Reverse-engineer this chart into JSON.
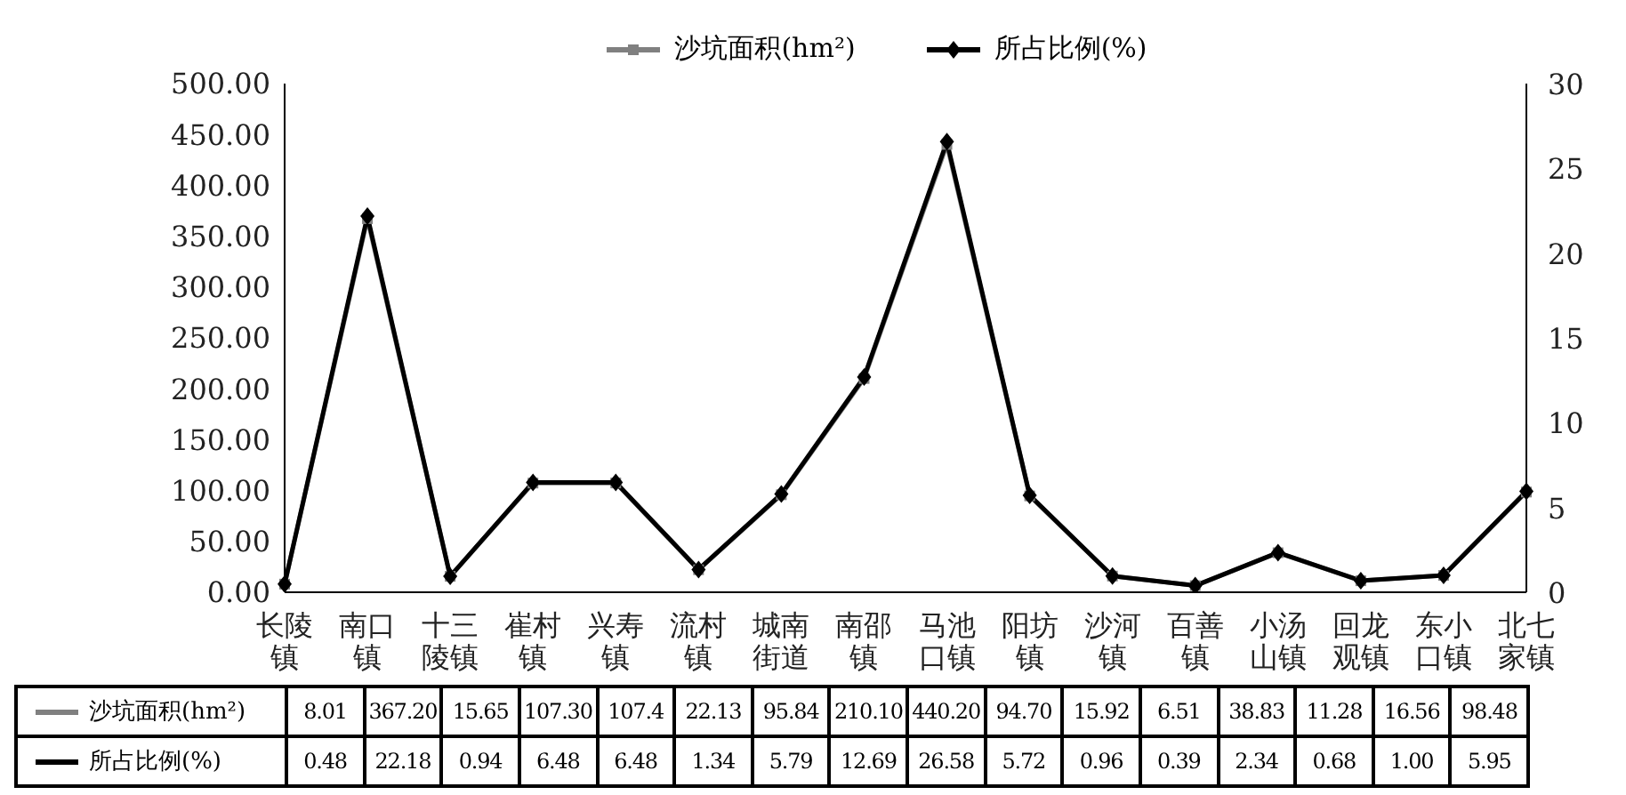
{
  "chart_data": {
    "type": "line",
    "categories": [
      "长陵镇",
      "南口镇",
      "十三陵镇",
      "崔村镇",
      "兴寿镇",
      "流村镇",
      "城南街道",
      "南邵镇",
      "马池口镇",
      "阳坊镇",
      "沙河镇",
      "百善镇",
      "小汤山镇",
      "回龙观镇",
      "东小口镇",
      "北七家镇"
    ],
    "series": [
      {
        "name": "沙坑面积(hm²)",
        "color": "#808080",
        "marker": "square",
        "values": [
          8.01,
          367.2,
          15.65,
          107.3,
          107.4,
          22.13,
          95.84,
          210.1,
          440.2,
          94.7,
          15.92,
          6.51,
          38.83,
          11.28,
          16.56,
          98.48
        ],
        "value_labels": [
          "8.01",
          "367.20",
          "15.65",
          "107.30",
          "107.4",
          "22.13",
          "95.84",
          "210.10",
          "440.20",
          "94.70",
          "15.92",
          "6.51",
          "38.83",
          "11.28",
          "16.56",
          "98.48"
        ]
      },
      {
        "name": "所占比例(%)",
        "color": "#000000",
        "marker": "diamond",
        "axis": "y2",
        "values": [
          0.48,
          22.18,
          0.94,
          6.48,
          6.48,
          1.34,
          5.79,
          12.69,
          26.58,
          5.72,
          0.96,
          0.39,
          2.34,
          0.68,
          1.0,
          5.95
        ],
        "value_labels": [
          "0.48",
          "22.18",
          "0.94",
          "6.48",
          "6.48",
          "1.34",
          "5.79",
          "12.69",
          "26.58",
          "5.72",
          "0.96",
          "0.39",
          "2.34",
          "0.68",
          "1.00",
          "5.95"
        ]
      }
    ],
    "ylim": [
      0,
      500
    ],
    "yticks": [
      {
        "value": 0,
        "label": "0.00"
      },
      {
        "value": 50,
        "label": "50.00"
      },
      {
        "value": 100,
        "label": "100.00"
      },
      {
        "value": 150,
        "label": "150.00"
      },
      {
        "value": 200,
        "label": "200.00"
      },
      {
        "value": 250,
        "label": "250.00"
      },
      {
        "value": 300,
        "label": "300.00"
      },
      {
        "value": 350,
        "label": "350.00"
      },
      {
        "value": 400,
        "label": "400.00"
      },
      {
        "value": 450,
        "label": "450.00"
      },
      {
        "value": 500,
        "label": "500.00"
      }
    ],
    "y2lim": [
      0,
      30
    ],
    "y2ticks": [
      0,
      5,
      10,
      15,
      20,
      25,
      30
    ],
    "grid": false,
    "legend": "top"
  }
}
